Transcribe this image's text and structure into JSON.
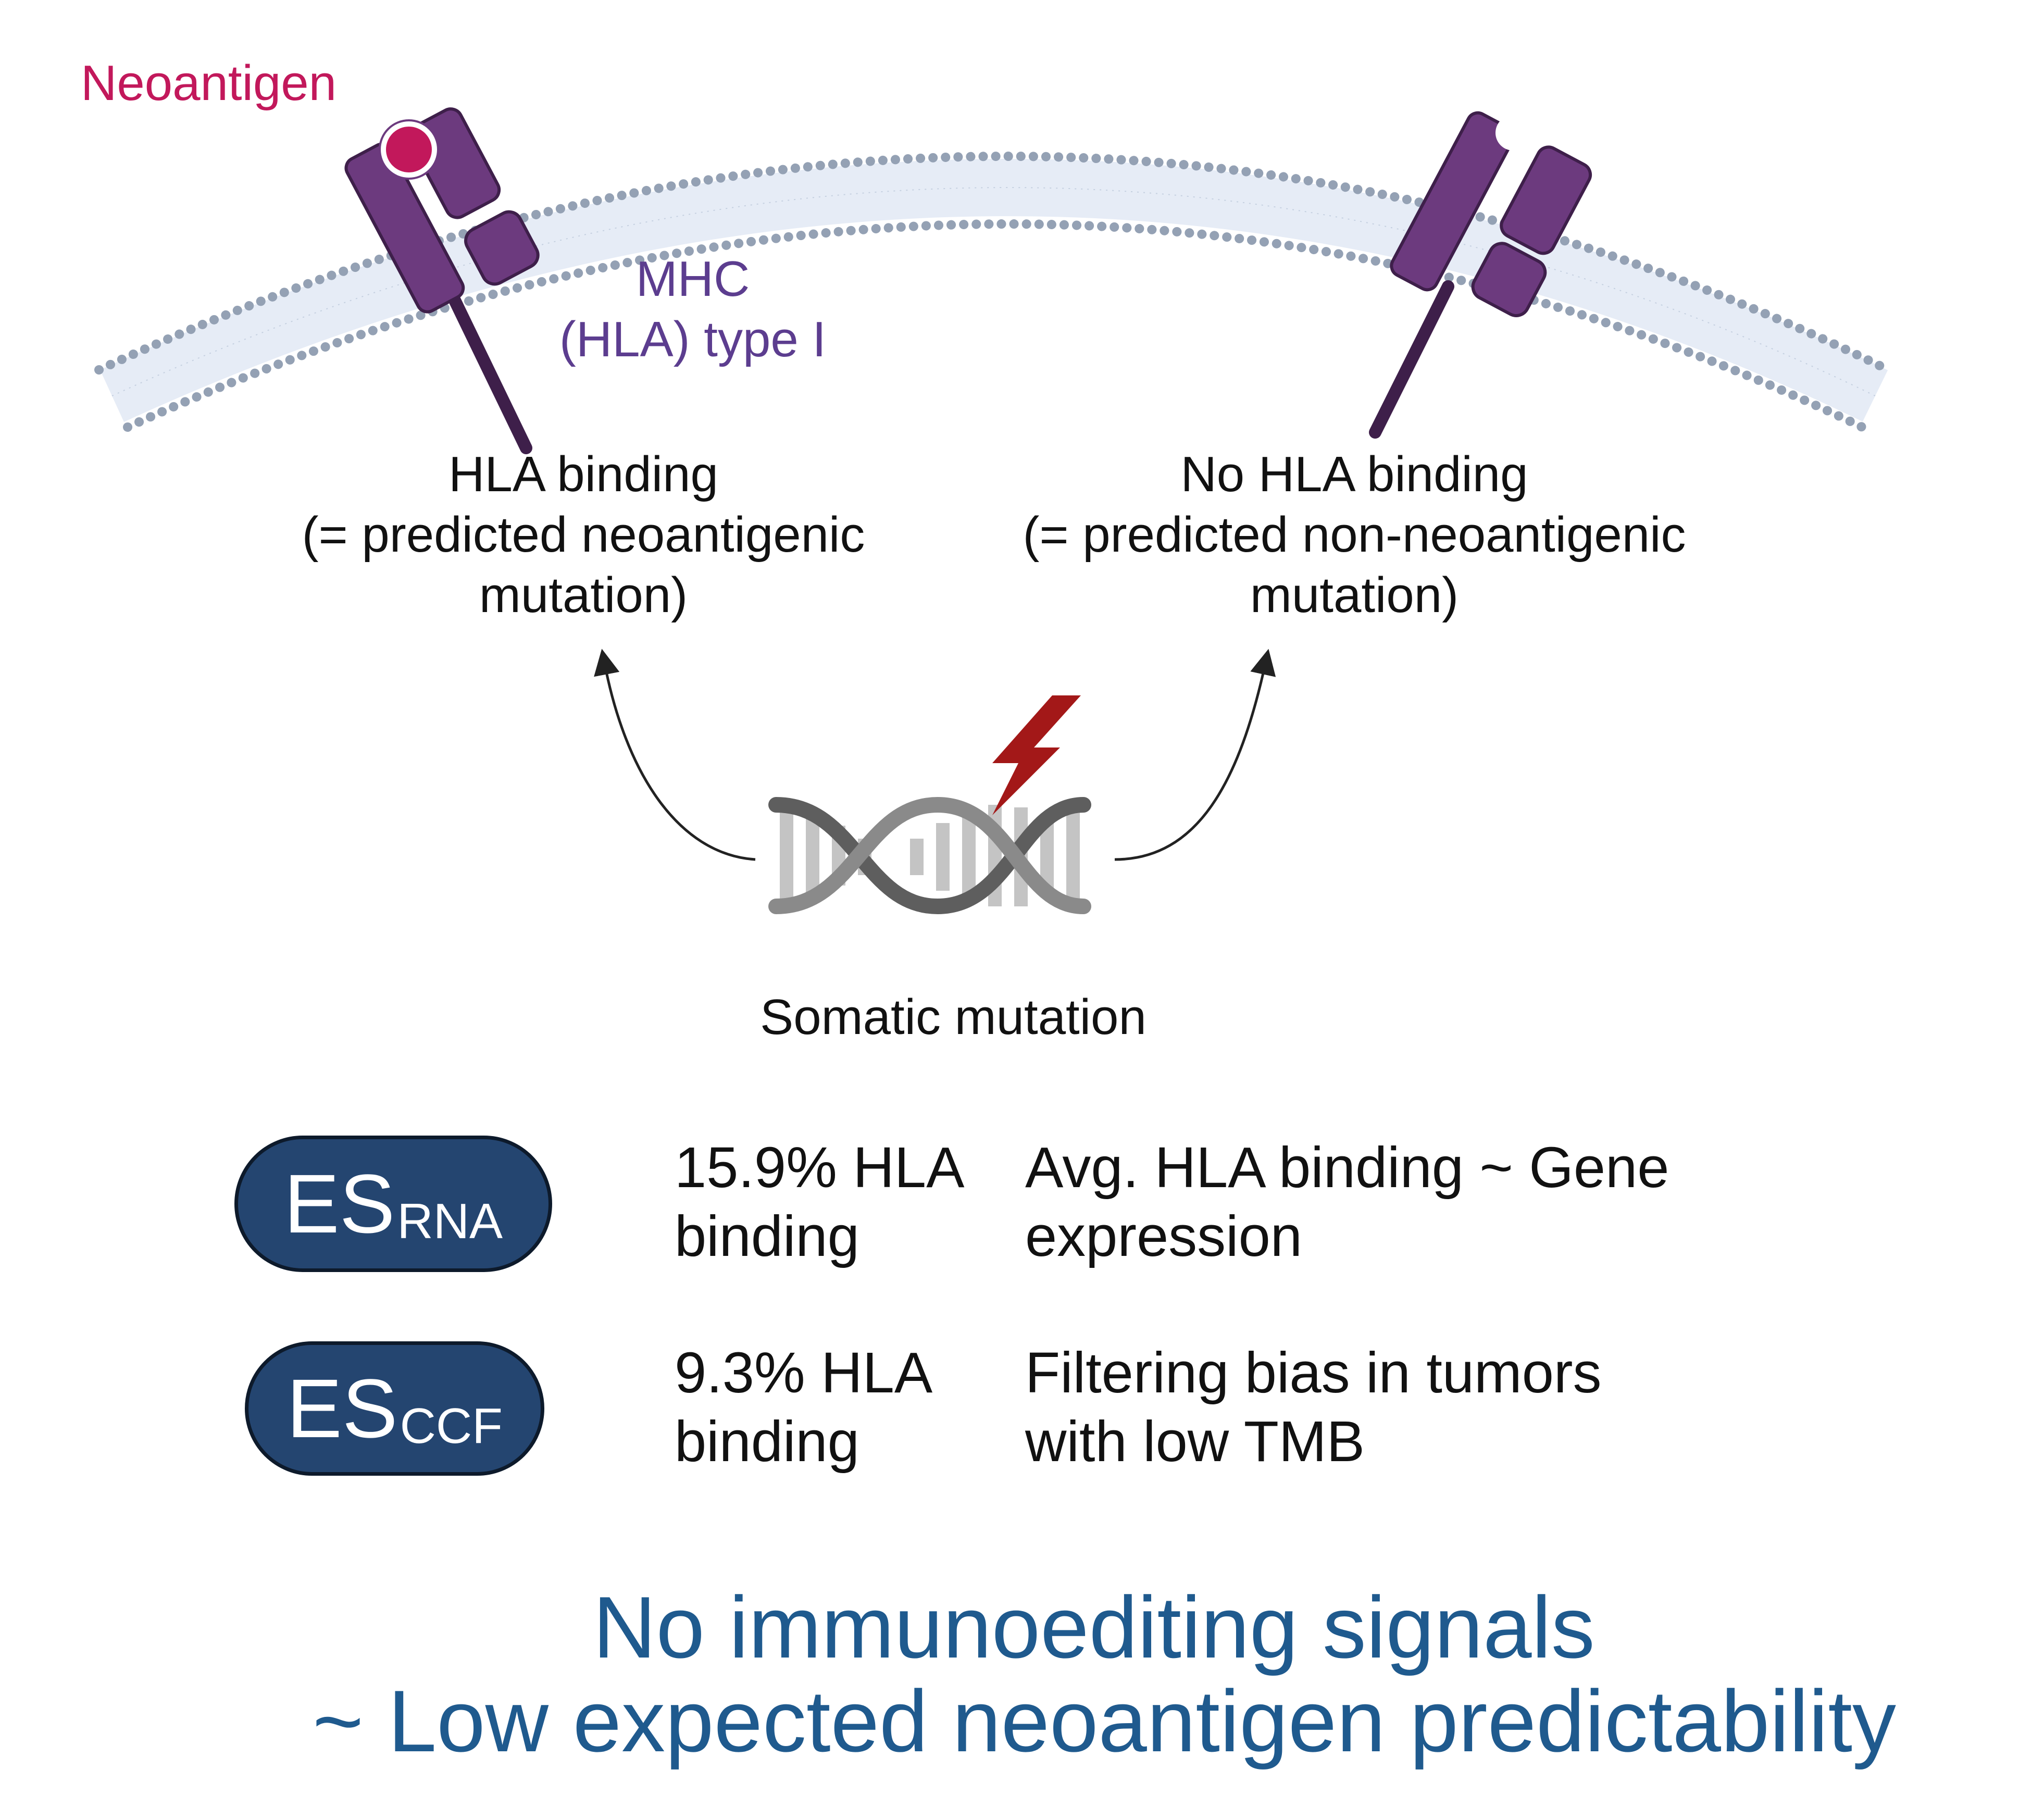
{
  "labels": {
    "neoantigen": "Neoantigen",
    "mhc_line1": "MHC",
    "mhc_line2": "(HLA) type I",
    "left_line1": "HLA binding",
    "left_line2": "(= predicted neoantigenic",
    "left_line3": "mutation)",
    "right_line1": "No HLA binding",
    "right_line2": "(= predicted non-neoantigenic",
    "right_line3": "mutation)",
    "somatic": "Somatic mutation"
  },
  "rows": [
    {
      "pill_main": "ES",
      "pill_sub": "RNA",
      "stat_line1": "15.9% HLA",
      "stat_line2": "binding",
      "desc_line1": "Avg. HLA binding ~ Gene",
      "desc_line2": "expression"
    },
    {
      "pill_main": "ES",
      "pill_sub": "CCF",
      "stat_line1": "9.3% HLA",
      "stat_line2": "binding",
      "desc_line1": "Filtering bias in tumors",
      "desc_line2": "with low TMB"
    }
  ],
  "conclusion": {
    "line1": "No immunoediting signals",
    "line2": "~ Low expected neoantigen predictability"
  },
  "colors": {
    "neoantigen": "#C2185B",
    "mhc": "#6C3A7E",
    "membrane": "#9AA6B6",
    "pill": "#244570",
    "conclusion": "#1F5A8E",
    "lightning": "#A31818"
  },
  "icons": [
    "cell-membrane-icon",
    "mhc-receptor-icon",
    "neoantigen-icon",
    "dna-helix-icon",
    "lightning-icon",
    "arrow-icon"
  ]
}
